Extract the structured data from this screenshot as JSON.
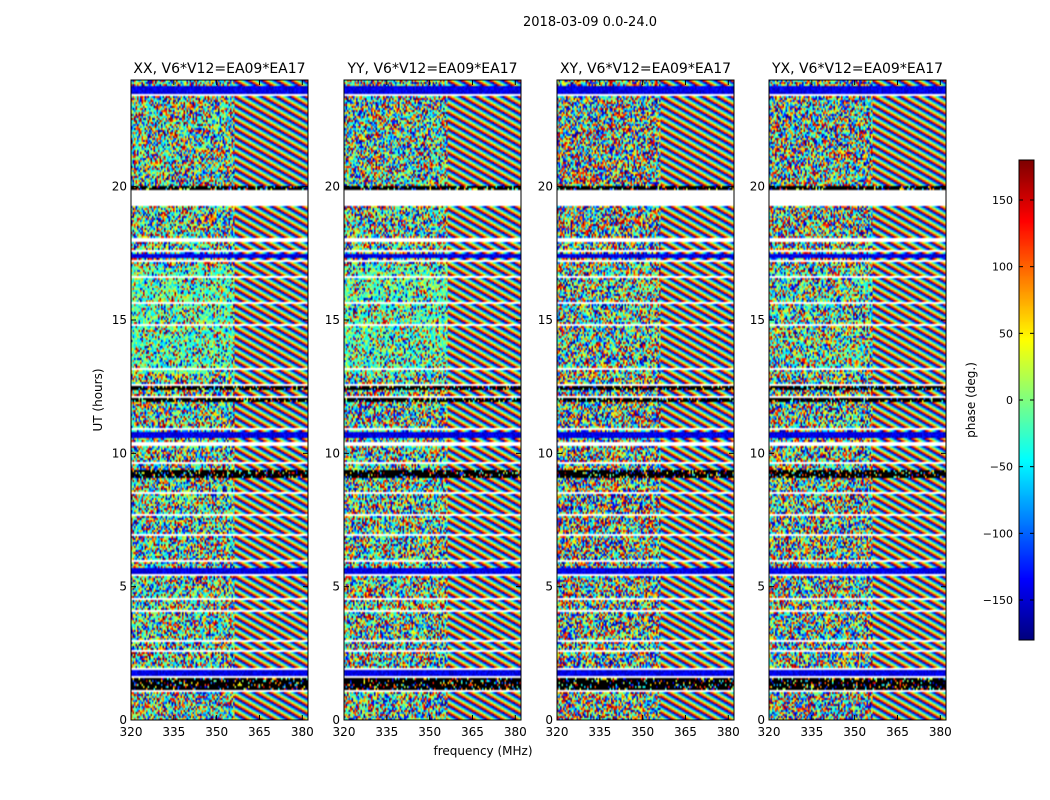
{
  "chart_data": {
    "type": "heatmap",
    "title": "2018-03-09 0.0-24.0",
    "xlabel": "frequency (MHz)",
    "ylabel": "UT (hours)",
    "xlim": [
      320,
      382
    ],
    "ylim": [
      0,
      24
    ],
    "x_ticks": [
      320,
      335,
      350,
      365,
      380
    ],
    "y_ticks": [
      0,
      5,
      10,
      15,
      20
    ],
    "fringe_start_mhz": 356,
    "panels": [
      {
        "title": "XX, V6*V12=EA09*EA17",
        "seed": 11,
        "smooth": 0.55
      },
      {
        "title": "YY, V6*V12=EA09*EA17",
        "seed": 23,
        "smooth": 0.5
      },
      {
        "title": "XY, V6*V12=EA09*EA17",
        "seed": 37,
        "smooth": 0.2
      },
      {
        "title": "YX, V6*V12=EA09*EA17",
        "seed": 53,
        "smooth": 0.3
      }
    ],
    "flagged_ut_ranges": [
      [
        1.05,
        1.1
      ],
      [
        1.58,
        1.63
      ],
      [
        1.9,
        1.95
      ],
      [
        2.55,
        2.6
      ],
      [
        2.95,
        3.02
      ],
      [
        3.35,
        3.4
      ],
      [
        3.65,
        3.7
      ],
      [
        4.05,
        4.1
      ],
      [
        4.5,
        4.55
      ],
      [
        5.0,
        5.05
      ],
      [
        5.4,
        5.48
      ],
      [
        5.95,
        6.02
      ],
      [
        6.9,
        6.97
      ],
      [
        7.65,
        7.72
      ],
      [
        8.45,
        8.52
      ],
      [
        9.6,
        9.68
      ],
      [
        10.3,
        10.4
      ],
      [
        10.9,
        10.95
      ],
      [
        11.45,
        11.5
      ],
      [
        12.1,
        12.15
      ],
      [
        12.55,
        12.6
      ],
      [
        13.1,
        13.18
      ],
      [
        14.0,
        14.05
      ],
      [
        14.8,
        14.85
      ],
      [
        15.6,
        15.65
      ],
      [
        16.1,
        16.15
      ],
      [
        16.6,
        16.65
      ],
      [
        17.15,
        17.22
      ],
      [
        17.55,
        17.6
      ],
      [
        17.95,
        18.1
      ],
      [
        19.3,
        19.9
      ],
      [
        22.7,
        22.75
      ],
      [
        23.4,
        23.46
      ]
    ],
    "dark_ut_ranges": [
      [
        1.15,
        1.55
      ],
      [
        9.1,
        9.35
      ],
      [
        11.9,
        12.05
      ],
      [
        12.35,
        12.5
      ],
      [
        19.9,
        20.0
      ]
    ],
    "saturated_ut_ranges": [
      [
        1.65,
        1.85
      ],
      [
        5.5,
        5.7
      ],
      [
        10.6,
        10.8
      ],
      [
        17.3,
        17.5
      ],
      [
        23.5,
        23.75
      ]
    ],
    "colorbar": {
      "label": "phase (deg.)",
      "range": [
        -180,
        180
      ],
      "ticks": [
        150,
        100,
        50,
        0,
        -50,
        -100,
        -150
      ],
      "tick_labels": [
        "150",
        "100",
        "50",
        "0",
        "−50",
        "−100",
        "−150"
      ],
      "colormap": "jet"
    }
  }
}
